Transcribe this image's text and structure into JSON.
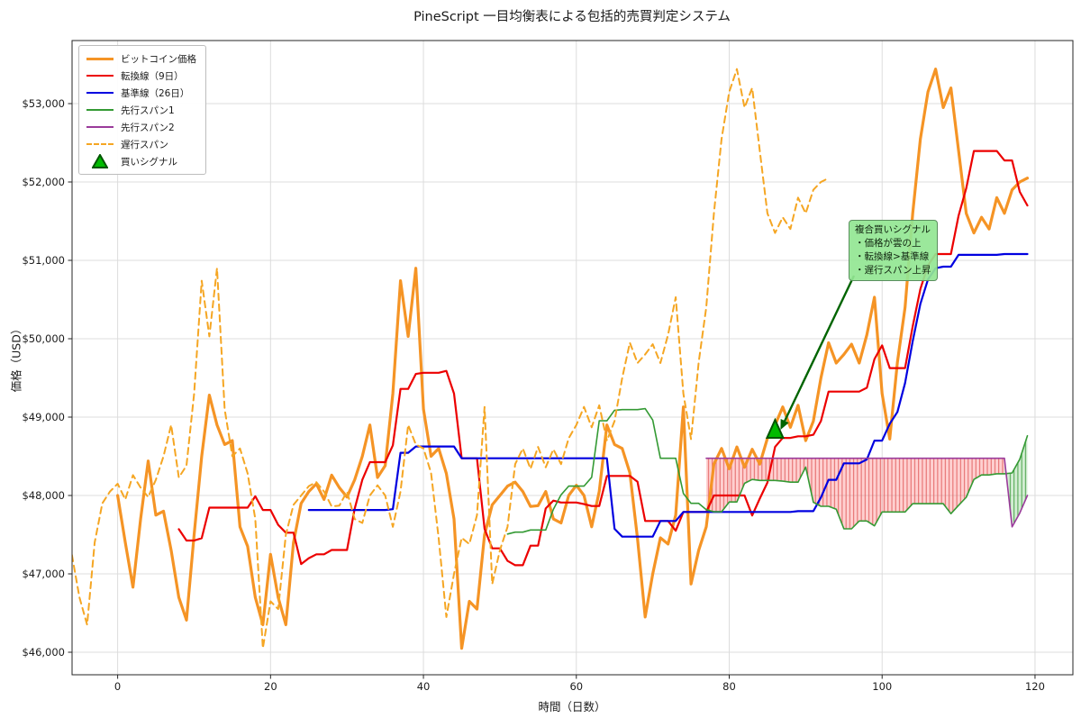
{
  "title": "PineScript 一目均衡表による包括的売買判定システム",
  "axes": {
    "ylabel": "価格（USD）",
    "xlabel": "時間（日数）",
    "y_ticks": [
      {
        "value": 46000,
        "label": "$46,000"
      },
      {
        "value": 47000,
        "label": "$47,000"
      },
      {
        "value": 48000,
        "label": "$48,000"
      },
      {
        "value": 49000,
        "label": "$49,000"
      },
      {
        "value": 50000,
        "label": "$50,000"
      },
      {
        "value": 51000,
        "label": "$51,000"
      },
      {
        "value": 52000,
        "label": "$52,000"
      },
      {
        "value": 53000,
        "label": "$53,000"
      }
    ],
    "x_ticks": [
      {
        "value": 0,
        "label": "0"
      },
      {
        "value": 20,
        "label": "20"
      },
      {
        "value": 40,
        "label": "40"
      },
      {
        "value": 60,
        "label": "60"
      },
      {
        "value": 80,
        "label": "80"
      },
      {
        "value": 100,
        "label": "100"
      },
      {
        "value": 120,
        "label": "120"
      }
    ]
  },
  "legend": {
    "items": [
      {
        "label": "ビットコイン価格",
        "color": "#F59425",
        "style": "thick-line"
      },
      {
        "label": "転換線（9日）",
        "color": "#EC0000",
        "style": "line"
      },
      {
        "label": "基準線（26日）",
        "color": "#0000E0",
        "style": "line"
      },
      {
        "label": "先行スパン1",
        "color": "#349A34",
        "style": "thin-line"
      },
      {
        "label": "先行スパン2",
        "color": "#9B3B9B",
        "style": "thin-line"
      },
      {
        "label": "遅行スパン",
        "color": "#F5A623",
        "style": "dashed-line"
      },
      {
        "label": "買いシグナル",
        "color": "#00BB00",
        "style": "triangle-up"
      }
    ]
  },
  "annotation": {
    "title": "複合買いシグナル",
    "lines": [
      "・価格が雲の上",
      "・転換線>基準線",
      "・遅行スパン上昇"
    ],
    "bg_color": "#90EE90",
    "arrow_color": "#006400"
  },
  "chart_data": {
    "type": "line",
    "title": "PineScript 一目均衡表による包括的売買判定システム",
    "xlabel": "時間（日数）",
    "ylabel": "価格（USD）",
    "xlim": [
      -6,
      125
    ],
    "ylim": [
      45680,
      53810
    ],
    "grid": true,
    "legend_position": "upper-left",
    "x_days": {
      "start": 0,
      "end": 119,
      "step": 1
    },
    "series": [
      {
        "name": "ビットコイン価格",
        "type": "price",
        "color": "#F59425",
        "width": 3.2,
        "values": [
          48000,
          47400,
          46830,
          47700,
          48440,
          47750,
          47800,
          47300,
          46700,
          46410,
          47500,
          48500,
          49280,
          48900,
          48650,
          48700,
          47600,
          47350,
          46700,
          46350,
          47250,
          46700,
          46350,
          47400,
          47900,
          48050,
          48150,
          47950,
          48260,
          48100,
          47980,
          48200,
          48500,
          48900,
          48230,
          48380,
          49300,
          50740,
          50030,
          50900,
          49100,
          48500,
          48600,
          48280,
          47700,
          46050,
          46650,
          46550,
          47500,
          47880,
          48000,
          48120,
          48170,
          48050,
          47860,
          47870,
          48050,
          47700,
          47650,
          48000,
          48130,
          48000,
          47600,
          48050,
          48900,
          48650,
          48600,
          48290,
          47450,
          46450,
          47000,
          47460,
          47380,
          47750,
          49130,
          46870,
          47300,
          47600,
          48400,
          48600,
          48340,
          48620,
          48360,
          48590,
          48400,
          48730,
          48900,
          49130,
          48870,
          49150,
          48700,
          48950,
          49500,
          49950,
          49690,
          49800,
          49930,
          49690,
          50050,
          50530,
          49300,
          48720,
          49700,
          50400,
          51600,
          52550,
          53150,
          53440,
          52950,
          53200,
          52400,
          51600,
          51350,
          51550,
          51400,
          51800,
          51600,
          51900,
          52000,
          52050
        ]
      },
      {
        "name": "転換線（9日）",
        "derived": "midpoint(high,low,9)",
        "color": "#EC0000",
        "width": 2.2
      },
      {
        "name": "基準線（26日）",
        "derived": "midpoint(high,low,26)",
        "color": "#0000E0",
        "width": 2.2
      },
      {
        "name": "先行スパン1",
        "derived": "(tenkan+kijun)/2 shifted +26",
        "color": "#349A34",
        "width": 1.6
      },
      {
        "name": "先行スパン2",
        "derived": "midpoint(high,low,52) shifted +26",
        "color": "#9B3B9B",
        "width": 1.6
      },
      {
        "name": "遅行スパン",
        "derived": "price shifted -26",
        "color": "#F5A623",
        "width": 2.0,
        "dashed": true
      }
    ],
    "cloud": {
      "starts_day": 77,
      "bearish_fill": "#FF6E6E",
      "bearish_hatch": "#E05A5A",
      "bullish_fill": "#78C878",
      "bullish_hatch": "#3A9A3A",
      "hatch_style": "vertical-lines"
    },
    "buy_signal": {
      "day": 86,
      "price": 48850,
      "marker": "triangle-up",
      "fill": "#00BB00",
      "edge": "#005500"
    }
  }
}
